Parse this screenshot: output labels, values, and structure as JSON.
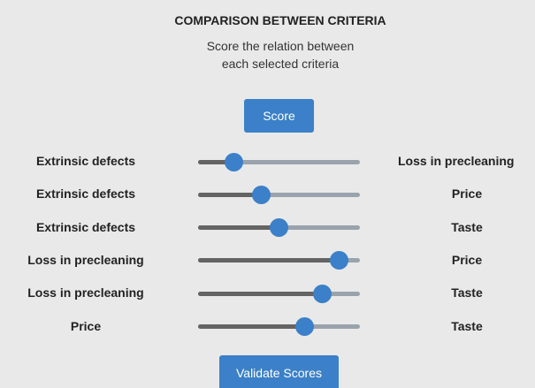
{
  "header": {
    "title": "COMPARISON BETWEEN CRITERIA",
    "subtitle": [
      "Score the relation between",
      "each selected criteria"
    ]
  },
  "buttons": {
    "score": "Score",
    "validate": "Validate Scores"
  },
  "rows": [
    {
      "left": "Extrinsic defects",
      "right": "Loss in precleaning",
      "value": 22
    },
    {
      "left": "Extrinsic defects",
      "right": "Price",
      "value": 39
    },
    {
      "left": "Extrinsic defects",
      "right": "Taste",
      "value": 50
    },
    {
      "left": "Loss in precleaning",
      "right": "Price",
      "value": 87
    },
    {
      "left": "Loss in precleaning",
      "right": "Taste",
      "value": 77
    },
    {
      "left": "Price",
      "right": "Taste",
      "value": 66
    }
  ]
}
